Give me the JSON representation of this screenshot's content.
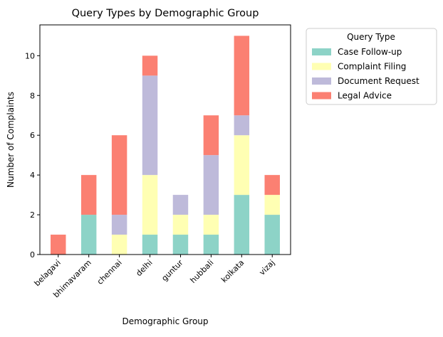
{
  "chart_data": {
    "type": "bar",
    "stacked": true,
    "title": "Query Types by Demographic Group",
    "xlabel": "Demographic Group",
    "ylabel": "Number of Complaints",
    "categories": [
      "belagavi",
      "bhimavaram",
      "chennai",
      "delhi",
      "guntur",
      "hubbali",
      "kolkata",
      "vizaj"
    ],
    "ylim": [
      0,
      11.55
    ],
    "yticks": [
      0,
      2,
      4,
      6,
      8,
      10
    ],
    "grid": false,
    "legend": {
      "title": "Query Type",
      "placement": "outside-top-right"
    },
    "series": [
      {
        "name": "Case Follow-up",
        "color": "#8dd3c7",
        "values": [
          0,
          2,
          0,
          1,
          1,
          1,
          3,
          2
        ]
      },
      {
        "name": "Complaint Filing",
        "color": "#ffffb3",
        "values": [
          0,
          0,
          1,
          3,
          1,
          1,
          3,
          1
        ]
      },
      {
        "name": "Document Request",
        "color": "#bebada",
        "values": [
          0,
          0,
          1,
          5,
          1,
          3,
          1,
          0
        ]
      },
      {
        "name": "Legal Advice",
        "color": "#fb8072",
        "values": [
          1,
          2,
          4,
          1,
          0,
          2,
          4,
          1
        ]
      }
    ]
  }
}
